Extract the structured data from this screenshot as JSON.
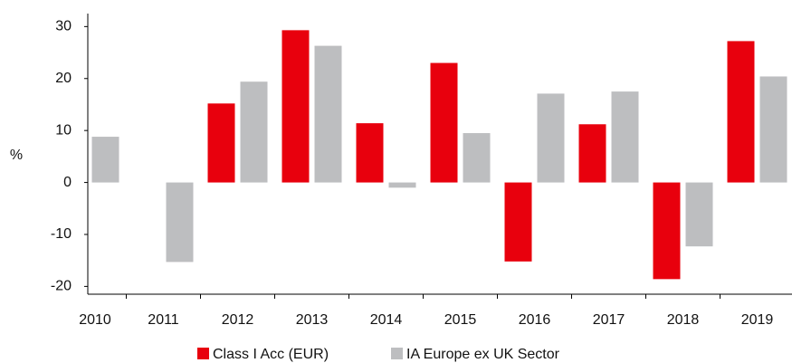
{
  "chart_data": {
    "type": "bar",
    "y_label": "%",
    "categories": [
      "2010",
      "2011",
      "2012",
      "2013",
      "2014",
      "2015",
      "2016",
      "2017",
      "2018",
      "2019"
    ],
    "series": [
      {
        "name": "Class I Acc (EUR)",
        "color": "#e8000d",
        "values": [
          null,
          null,
          15.2,
          29.3,
          11.4,
          23.0,
          -15.2,
          11.2,
          -18.6,
          27.2
        ]
      },
      {
        "name": "IA Europe ex UK Sector",
        "color": "#bdbec0",
        "values": [
          8.8,
          -15.3,
          19.4,
          26.3,
          -1.0,
          9.5,
          17.1,
          17.5,
          -12.3,
          20.4
        ]
      }
    ],
    "ylim": [
      -21.5,
      32.5
    ],
    "yticks": [
      -20,
      -10,
      0,
      10,
      20,
      30
    ],
    "grid": false,
    "legend": "bottom"
  }
}
